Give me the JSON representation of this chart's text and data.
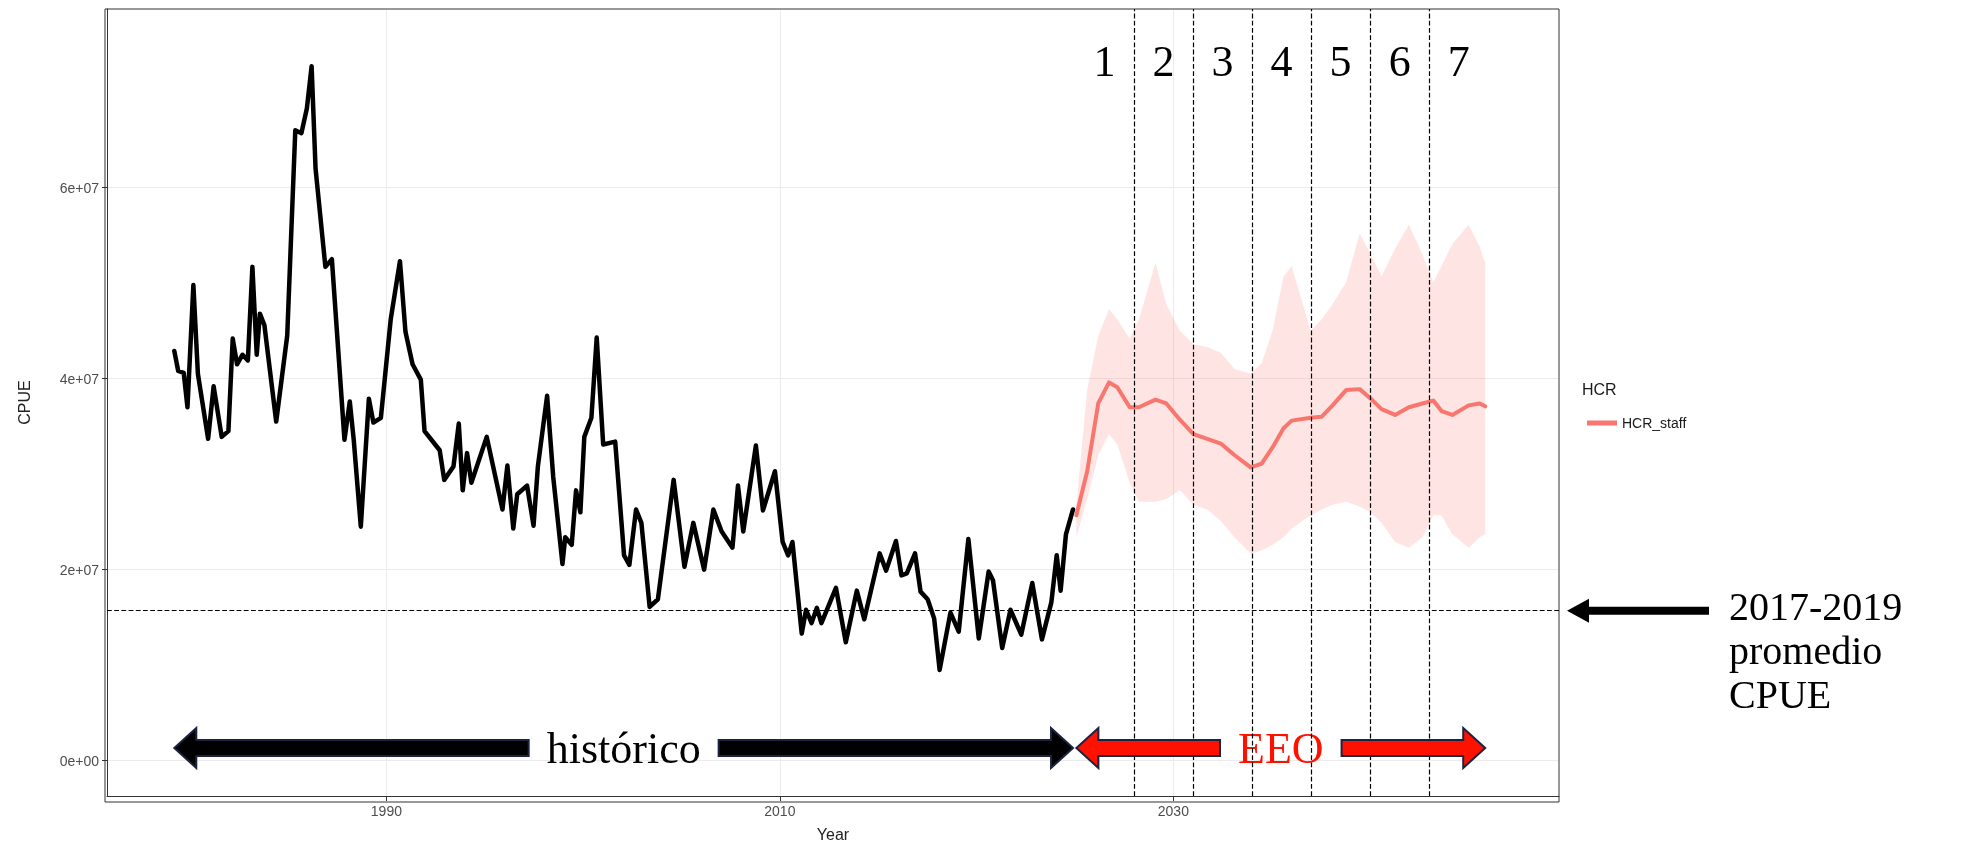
{
  "chart_data": {
    "type": "line",
    "xlabel": "Year",
    "ylabel": "CPUE",
    "legend_title": "HCR",
    "legend": "right",
    "grid": true,
    "marker": "none",
    "line_style": "solid",
    "xlim": [
      1975.8,
      2049.6
    ],
    "xticks": [
      1990,
      2010,
      2030
    ],
    "ylim": [
      -3700000.0,
      78700000.0
    ],
    "yticks": [
      {
        "value": 0,
        "label": "0e+00"
      },
      {
        "value": 20000000.0,
        "label": "2e+07"
      },
      {
        "value": 40000000.0,
        "label": "4e+07"
      },
      {
        "value": 60000000.0,
        "label": "6e+07"
      }
    ],
    "series": [
      {
        "color": "#000000",
        "x": [
          1979.22,
          1979.42,
          1979.7,
          1979.89,
          1980.19,
          1980.42,
          1980.94,
          1981.22,
          1981.63,
          1981.97,
          1982.19,
          1982.41,
          1982.69,
          1982.96,
          1983.19,
          1983.41,
          1983.57,
          1983.8,
          1984.4,
          1984.96,
          1985.37,
          1985.68,
          1985.96,
          1986.2,
          1986.4,
          1986.9,
          1987.23,
          1987.87,
          1988.14,
          1988.34,
          1988.7,
          1989.11,
          1989.34,
          1989.72,
          1990.22,
          1990.69,
          1990.97,
          1991.33,
          1991.75,
          1991.94,
          1992.71,
          1992.94,
          1993.41,
          1993.68,
          1993.88,
          1994.1,
          1994.32,
          1995.1,
          1995.9,
          1996.15,
          1996.45,
          1996.65,
          1997.15,
          1997.48,
          1997.7,
          1998.17,
          1998.48,
          1998.95,
          1999.09,
          1999.42,
          1999.64,
          1999.86,
          2000.06,
          2000.42,
          2000.69,
          2001.02,
          2001.63,
          2002.08,
          2002.35,
          2002.69,
          2002.96,
          2003.38,
          2003.8,
          2004.6,
          2005.15,
          2005.6,
          2006.15,
          2006.62,
          2007.04,
          2007.59,
          2007.87,
          2008.14,
          2008.78,
          2009.14,
          2009.75,
          2010.14,
          2010.42,
          2010.64,
          2011.11,
          2011.33,
          2011.61,
          2011.88,
          2012.11,
          2012.85,
          2013.35,
          2013.91,
          2014.29,
          2015.07,
          2015.4,
          2015.9,
          2016.18,
          2016.45,
          2016.87,
          2017.15,
          2017.51,
          2017.84,
          2018.12,
          2018.67,
          2019.09,
          2019.58,
          2020.11,
          2020.61,
          2020.83,
          2021.3,
          2021.72,
          2022.27,
          2022.83,
          2023.32,
          2023.8,
          2024.07,
          2024.27,
          2024.54,
          2024.9
        ],
        "values": [
          42900000.0,
          40800000.0,
          40600000.0,
          37000000.0,
          49800000.0,
          40500000.0,
          33700000.0,
          39200000.0,
          33900000.0,
          34500000.0,
          44200000.0,
          41500000.0,
          42500000.0,
          41900000.0,
          51700000.0,
          42500000.0,
          46800000.0,
          45600000.0,
          35500000.0,
          44500000.0,
          66000000.0,
          65700000.0,
          68300000.0,
          72700000.0,
          62000000.0,
          51700000.0,
          52500000.0,
          33600000.0,
          37600000.0,
          33600000.0,
          24500000.0,
          37900000.0,
          35400000.0,
          35900000.0,
          46200000.0,
          52300000.0,
          44900000.0,
          41500000.0,
          39900000.0,
          34500000.0,
          32500000.0,
          29400000.0,
          30800000.0,
          35300000.0,
          28300000.0,
          32200000.0,
          29100000.0,
          33900000.0,
          26300000.0,
          30900000.0,
          24300000.0,
          27900000.0,
          28800000.0,
          24600000.0,
          30800000.0,
          38200000.0,
          29700000.0,
          20600000.0,
          23400000.0,
          22600000.0,
          28300000.0,
          26000000.0,
          33900000.0,
          35900000.0,
          44300000.0,
          33100000.0,
          33400000.0,
          21500000.0,
          20500000.0,
          26300000.0,
          24900000.0,
          16100000.0,
          16900000.0,
          29400000.0,
          20300000.0,
          24900000.0,
          20000000.0,
          26300000.0,
          24000000.0,
          22300000.0,
          28800000.0,
          24000000.0,
          33000000.0,
          26200000.0,
          30300000.0,
          22900000.0,
          21500000.0,
          22900000.0,
          13300000.0,
          15800000.0,
          14400000.0,
          16000000.0,
          14400000.0,
          18100000.0,
          12400000.0,
          17800000.0,
          14800000.0,
          21700000.0,
          19900000.0,
          23000000.0,
          19400000.0,
          19600000.0,
          21700000.0,
          17700000.0,
          16900000.0,
          14900000.0,
          9500000.0,
          15500000.0,
          13500000.0,
          23200000.0,
          12800000.0,
          19800000.0,
          18900000.0,
          11800000.0,
          15800000.0,
          13200000.0,
          18600000.0,
          12700000.0,
          16600000.0,
          21500000.0,
          17800000.0,
          23700000.0,
          26300000.0
        ]
      },
      {
        "name": "HCR_staff",
        "color": "#f8766d",
        "x": [
          2025.07,
          2025.62,
          2026.18,
          2026.73,
          2027.15,
          2027.78,
          2028.25,
          2029.09,
          2029.64,
          2030.33,
          2031.02,
          2031.72,
          2032.41,
          2033.1,
          2033.93,
          2034.49,
          2035.04,
          2035.6,
          2036.01,
          2036.98,
          2037.53,
          2038.09,
          2038.78,
          2039.47,
          2040.03,
          2040.58,
          2041.27,
          2041.97,
          2042.66,
          2043.21,
          2043.63,
          2044.18,
          2045.01,
          2045.57,
          2045.85
        ],
        "values": [
          25700000.0,
          30300000.0,
          37400000.0,
          39600000.0,
          39100000.0,
          37000000.0,
          37000000.0,
          37800000.0,
          37400000.0,
          35700000.0,
          34200000.0,
          33700000.0,
          33200000.0,
          32000000.0,
          30700000.0,
          31100000.0,
          32800000.0,
          34800000.0,
          35600000.0,
          35900000.0,
          36000000.0,
          37200000.0,
          38800000.0,
          38900000.0,
          37900000.0,
          36800000.0,
          36200000.0,
          37000000.0,
          37400000.0,
          37700000.0,
          36600000.0,
          36200000.0,
          37200000.0,
          37400000.0,
          37100000.0
        ],
        "upper": [
          26800000.0,
          38800000.0,
          44400000.0,
          47300000.0,
          46200000.0,
          44200000.0,
          46200000.0,
          52100000.0,
          47800000.0,
          45000000.0,
          43600000.0,
          43300000.0,
          42700000.0,
          41000000.0,
          40500000.0,
          41600000.0,
          45000000.0,
          50700000.0,
          51800000.0,
          45000000.0,
          46200000.0,
          47800000.0,
          50100000.0,
          55200000.0,
          53000000.0,
          50700000.0,
          53600000.0,
          56100000.0,
          53000000.0,
          50100000.0,
          51800000.0,
          54100000.0,
          56100000.0,
          53800000.0,
          52100000.0
        ],
        "lower": [
          23400000.0,
          27400000.0,
          32000000.0,
          34200000.0,
          33100000.0,
          29100000.0,
          27100000.0,
          27100000.0,
          27400000.0,
          28300000.0,
          26800000.0,
          26300000.0,
          25100000.0,
          23400000.0,
          21700000.0,
          22000000.0,
          22600000.0,
          23400000.0,
          24300000.0,
          25700000.0,
          26300000.0,
          26800000.0,
          27100000.0,
          26600000.0,
          26000000.0,
          24900000.0,
          22900000.0,
          22300000.0,
          23400000.0,
          25700000.0,
          25700000.0,
          23700000.0,
          22300000.0,
          23400000.0,
          23700000.0
        ]
      }
    ],
    "ref_lines": [
      {
        "axis": "y",
        "value": 15700000.0,
        "label": "2017-2019\npromedio\nCPUE",
        "color": "#000000",
        "line_style": "dashed"
      },
      {
        "axis": "x",
        "value": 2028,
        "color": "#000000",
        "line_style": "dashed"
      },
      {
        "axis": "x",
        "value": 2031,
        "color": "#000000",
        "line_style": "dashed"
      },
      {
        "axis": "x",
        "value": 2034,
        "color": "#000000",
        "line_style": "dashed"
      },
      {
        "axis": "x",
        "value": 2037,
        "color": "#000000",
        "line_style": "dashed"
      },
      {
        "axis": "x",
        "value": 2040,
        "color": "#000000",
        "line_style": "dashed"
      },
      {
        "axis": "x",
        "value": 2043,
        "color": "#000000",
        "line_style": "dashed"
      }
    ],
    "annotations": [
      "1",
      "2",
      "3",
      "4",
      "5",
      "6",
      "7",
      "histórico",
      "EEO"
    ]
  }
}
